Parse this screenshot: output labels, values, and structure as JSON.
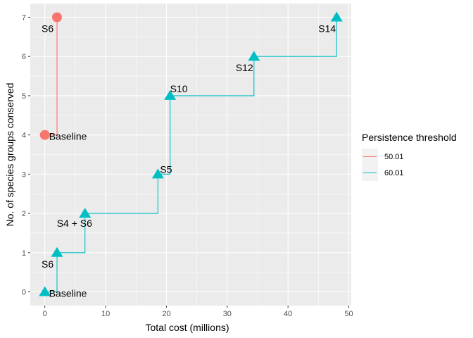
{
  "chart_data": {
    "type": "line",
    "xlabel": "Total cost (millions)",
    "ylabel": "No. of species groups conserved",
    "xlim": [
      -2.4,
      50.4
    ],
    "ylim": [
      -0.35,
      7.35
    ],
    "x_ticks": [
      0,
      10,
      20,
      30,
      40,
      50
    ],
    "y_ticks": [
      0,
      1,
      2,
      3,
      4,
      5,
      6,
      7
    ],
    "grid": true,
    "step": true,
    "legend": {
      "title": "Persistence threshold",
      "placement": "right"
    },
    "series": [
      {
        "name": "50.01",
        "color": "#F8766D",
        "marker": "circle",
        "points": [
          {
            "x": 0,
            "y": 4,
            "label": "Baseline"
          },
          {
            "x": 2,
            "y": 7,
            "label": "S6"
          }
        ]
      },
      {
        "name": "60.01",
        "color": "#00BFC4",
        "marker": "triangle",
        "points": [
          {
            "x": 0,
            "y": 0,
            "label": "Baseline"
          },
          {
            "x": 2,
            "y": 1,
            "label": "S6"
          },
          {
            "x": 6.6,
            "y": 2,
            "label": "S4 + S6"
          },
          {
            "x": 18.6,
            "y": 3,
            "label": "S5"
          },
          {
            "x": 20.6,
            "y": 5,
            "label": "S10"
          },
          {
            "x": 34.4,
            "y": 6,
            "label": "S12"
          },
          {
            "x": 48,
            "y": 7,
            "label": "S14"
          }
        ]
      }
    ]
  }
}
